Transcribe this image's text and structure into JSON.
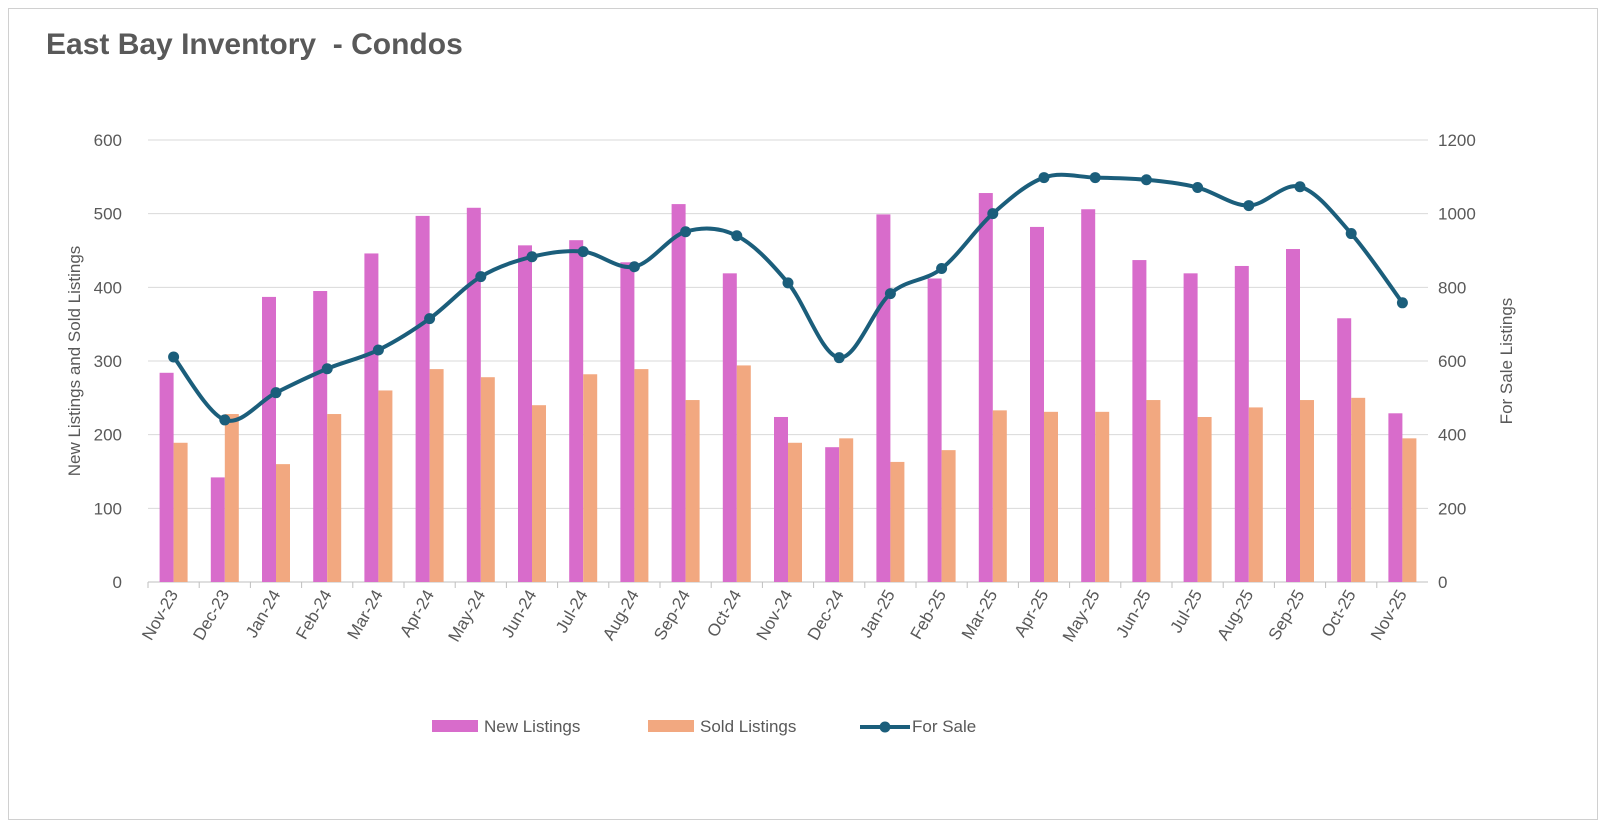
{
  "chart_data": {
    "type": "bar+line",
    "title": "East Bay Inventory  - Condos",
    "categories": [
      "Nov-23",
      "Dec-23",
      "Jan-24",
      "Feb-24",
      "Mar-24",
      "Apr-24",
      "May-24",
      "Jun-24",
      "Jul-24",
      "Aug-24",
      "Sep-24",
      "Oct-24",
      "Nov-24",
      "Dec-24",
      "Jan-25",
      "Feb-25",
      "Mar-25",
      "Apr-25",
      "May-25",
      "Jun-25",
      "Jul-25",
      "Aug-25",
      "Sep-25",
      "Oct-25",
      "Nov-25"
    ],
    "series": [
      {
        "name": "New Listings",
        "type": "bar",
        "axis": "left",
        "color": "#d86ccb",
        "values": [
          284,
          142,
          387,
          395,
          446,
          497,
          508,
          457,
          464,
          434,
          513,
          419,
          224,
          183,
          499,
          412,
          528,
          482,
          506,
          437,
          419,
          429,
          452,
          358,
          229
        ]
      },
      {
        "name": "Sold Listings",
        "type": "bar",
        "axis": "left",
        "color": "#f2a880",
        "values": [
          189,
          228,
          160,
          228,
          260,
          289,
          278,
          240,
          282,
          289,
          247,
          294,
          189,
          195,
          163,
          179,
          233,
          231,
          231,
          247,
          224,
          237,
          247,
          250,
          195
        ]
      },
      {
        "name": "For Sale",
        "type": "line",
        "axis": "right",
        "color": "#1b5e7b",
        "smooth": true,
        "markers": true,
        "values": [
          611,
          440,
          514,
          579,
          630,
          715,
          829,
          883,
          897,
          856,
          951,
          940,
          812,
          609,
          783,
          851,
          1000,
          1098,
          1098,
          1092,
          1071,
          1022,
          1073,
          946,
          758
        ]
      }
    ],
    "ylabel": "New Listings and Sold Listings",
    "y2label": "For Sale Listings",
    "ylim": [
      0,
      600
    ],
    "y2lim": [
      0,
      1200
    ],
    "yticks": [
      "0",
      "100",
      "200",
      "300",
      "400",
      "500",
      "600"
    ],
    "y2ticks": [
      "0",
      "200",
      "400",
      "600",
      "800",
      "1000",
      "1200"
    ],
    "grid": true,
    "legend": "bottom"
  }
}
